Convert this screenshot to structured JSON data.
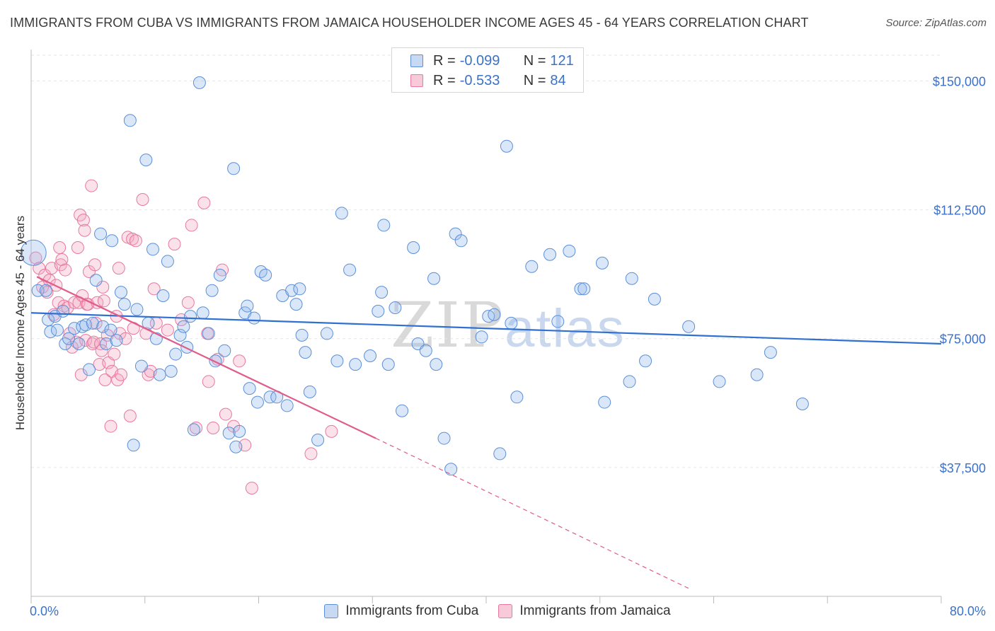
{
  "title": "IMMIGRANTS FROM CUBA VS IMMIGRANTS FROM JAMAICA HOUSEHOLDER INCOME AGES 45 - 64 YEARS CORRELATION CHART",
  "source": "Source: ZipAtlas.com",
  "watermark": {
    "zip": "ZIP",
    "atlas": "atlas"
  },
  "colors": {
    "cuba": "#5b8fd8",
    "jamaica": "#e8789f",
    "cuba_line": "#3070d0",
    "jamaica_line": "#e05c8a",
    "axis_text": "#3b72c8"
  },
  "legend": [
    {
      "r_label": "R =",
      "r_value": "-0.099",
      "n_label": "N =",
      "n_value": "121"
    },
    {
      "r_label": "R =",
      "r_value": "-0.533",
      "n_label": "N =",
      "n_value": "84"
    }
  ],
  "chart_data": {
    "type": "scatter",
    "title": "IMMIGRANTS FROM CUBA VS IMMIGRANTS FROM JAMAICA HOUSEHOLDER INCOME AGES 45 - 64 YEARS CORRELATION CHART",
    "xlabel": "",
    "ylabel": "Householder Income Ages 45 - 64 years",
    "xlim": [
      0,
      80
    ],
    "ylim": [
      0,
      157500
    ],
    "x_tick_labels": [
      "0.0%",
      "80.0%"
    ],
    "y_ticks": [
      37500,
      75000,
      112500,
      150000
    ],
    "y_tick_labels": [
      "$37,500",
      "$75,000",
      "$112,500",
      "$150,000"
    ],
    "grid": true,
    "legend_position": "top-center",
    "series": [
      {
        "name": "Immigrants from Cuba",
        "trend": {
          "x": [
            0,
            80
          ],
          "y": [
            82500,
            73500
          ]
        },
        "points": [
          [
            0.2,
            100000
          ],
          [
            0.6,
            89000
          ],
          [
            1.3,
            89000
          ],
          [
            1.5,
            80500
          ],
          [
            1.7,
            77000
          ],
          [
            2.1,
            81500
          ],
          [
            2.3,
            77500
          ],
          [
            2.8,
            83000
          ],
          [
            3.0,
            73500
          ],
          [
            3.3,
            75000
          ],
          [
            3.8,
            78000
          ],
          [
            4.2,
            73500
          ],
          [
            4.5,
            78500
          ],
          [
            4.8,
            79000
          ],
          [
            5.1,
            66000
          ],
          [
            5.4,
            79500
          ],
          [
            5.7,
            92000
          ],
          [
            6.1,
            105500
          ],
          [
            6.3,
            78500
          ],
          [
            6.6,
            73500
          ],
          [
            7.0,
            77500
          ],
          [
            7.1,
            103500
          ],
          [
            7.5,
            74500
          ],
          [
            7.9,
            88500
          ],
          [
            8.2,
            85000
          ],
          [
            8.7,
            138500
          ],
          [
            9.0,
            44000
          ],
          [
            9.3,
            83500
          ],
          [
            9.7,
            67000
          ],
          [
            10.1,
            127000
          ],
          [
            10.3,
            79500
          ],
          [
            10.7,
            101000
          ],
          [
            11.0,
            75000
          ],
          [
            11.3,
            64500
          ],
          [
            11.6,
            87500
          ],
          [
            12.0,
            97500
          ],
          [
            12.3,
            65500
          ],
          [
            12.7,
            70500
          ],
          [
            13.1,
            76000
          ],
          [
            13.4,
            78500
          ],
          [
            13.7,
            72500
          ],
          [
            14.0,
            81500
          ],
          [
            14.3,
            48500
          ],
          [
            14.8,
            149500
          ],
          [
            15.1,
            82500
          ],
          [
            15.6,
            76500
          ],
          [
            15.9,
            89000
          ],
          [
            16.2,
            68500
          ],
          [
            16.6,
            93500
          ],
          [
            17.0,
            71500
          ],
          [
            17.4,
            47500
          ],
          [
            17.8,
            124500
          ],
          [
            18.0,
            43500
          ],
          [
            18.3,
            48000
          ],
          [
            18.8,
            82500
          ],
          [
            19.0,
            84500
          ],
          [
            19.2,
            60500
          ],
          [
            19.6,
            81000
          ],
          [
            19.9,
            56500
          ],
          [
            20.2,
            94500
          ],
          [
            20.6,
            93500
          ],
          [
            21.0,
            58000
          ],
          [
            21.6,
            58000
          ],
          [
            22.1,
            87500
          ],
          [
            22.5,
            55500
          ],
          [
            22.9,
            89000
          ],
          [
            23.3,
            85000
          ],
          [
            23.6,
            89500
          ],
          [
            23.8,
            76000
          ],
          [
            24.1,
            71000
          ],
          [
            24.5,
            59500
          ],
          [
            25.2,
            45500
          ],
          [
            26.0,
            76500
          ],
          [
            26.9,
            68500
          ],
          [
            27.3,
            111500
          ],
          [
            28.0,
            95000
          ],
          [
            28.5,
            67500
          ],
          [
            29.8,
            70000
          ],
          [
            30.5,
            83000
          ],
          [
            30.8,
            88500
          ],
          [
            31.0,
            108000
          ],
          [
            31.4,
            67500
          ],
          [
            32.0,
            84000
          ],
          [
            32.6,
            54000
          ],
          [
            33.6,
            101500
          ],
          [
            34.0,
            73500
          ],
          [
            34.7,
            71500
          ],
          [
            35.4,
            92500
          ],
          [
            35.6,
            67500
          ],
          [
            36.3,
            46000
          ],
          [
            36.9,
            37000
          ],
          [
            37.3,
            105500
          ],
          [
            37.8,
            103500
          ],
          [
            39.6,
            75500
          ],
          [
            40.2,
            81500
          ],
          [
            40.7,
            82000
          ],
          [
            41.2,
            41500
          ],
          [
            41.8,
            131000
          ],
          [
            42.2,
            79500
          ],
          [
            42.7,
            58000
          ],
          [
            44.0,
            96000
          ],
          [
            45.6,
            99500
          ],
          [
            46.3,
            80000
          ],
          [
            47.3,
            100500
          ],
          [
            48.3,
            89500
          ],
          [
            48.6,
            89500
          ],
          [
            50.2,
            97000
          ],
          [
            50.4,
            56500
          ],
          [
            52.6,
            62500
          ],
          [
            52.8,
            92500
          ],
          [
            54.0,
            68500
          ],
          [
            54.8,
            86500
          ],
          [
            57.8,
            78500
          ],
          [
            60.5,
            62500
          ],
          [
            63.8,
            64500
          ],
          [
            65.0,
            71000
          ],
          [
            67.8,
            56000
          ]
        ]
      },
      {
        "name": "Immigrants from Jamaica",
        "trend": {
          "x": [
            0.5,
            30.3
          ],
          "y": [
            93000,
            46000
          ]
        },
        "trend_dashed": {
          "x": [
            30.3,
            58.0
          ],
          "y": [
            46000,
            2000
          ]
        },
        "points": [
          [
            0.4,
            98500
          ],
          [
            0.7,
            95500
          ],
          [
            1.0,
            90000
          ],
          [
            1.2,
            93500
          ],
          [
            1.4,
            88500
          ],
          [
            1.6,
            92000
          ],
          [
            1.8,
            95500
          ],
          [
            2.0,
            82000
          ],
          [
            2.2,
            90500
          ],
          [
            2.4,
            85500
          ],
          [
            2.5,
            101500
          ],
          [
            2.6,
            96500
          ],
          [
            2.7,
            98000
          ],
          [
            2.9,
            84500
          ],
          [
            3.0,
            95000
          ],
          [
            3.2,
            84000
          ],
          [
            3.4,
            76500
          ],
          [
            3.6,
            72500
          ],
          [
            3.8,
            85500
          ],
          [
            4.0,
            74000
          ],
          [
            4.1,
            101500
          ],
          [
            4.2,
            85500
          ],
          [
            4.3,
            111000
          ],
          [
            4.4,
            64500
          ],
          [
            4.5,
            87500
          ],
          [
            4.6,
            109500
          ],
          [
            4.7,
            106500
          ],
          [
            4.8,
            74500
          ],
          [
            4.9,
            85000
          ],
          [
            5.0,
            85000
          ],
          [
            5.1,
            94500
          ],
          [
            5.3,
            119500
          ],
          [
            5.4,
            73500
          ],
          [
            5.5,
            74000
          ],
          [
            5.6,
            96500
          ],
          [
            5.7,
            79500
          ],
          [
            5.8,
            85500
          ],
          [
            6.0,
            67500
          ],
          [
            6.1,
            73500
          ],
          [
            6.2,
            71500
          ],
          [
            6.3,
            90000
          ],
          [
            6.4,
            86000
          ],
          [
            6.5,
            63000
          ],
          [
            6.7,
            76000
          ],
          [
            6.8,
            68000
          ],
          [
            7.0,
            49500
          ],
          [
            7.1,
            65500
          ],
          [
            7.3,
            70500
          ],
          [
            7.5,
            81500
          ],
          [
            7.6,
            63000
          ],
          [
            7.7,
            95500
          ],
          [
            7.8,
            76500
          ],
          [
            7.9,
            64500
          ],
          [
            8.3,
            75000
          ],
          [
            8.5,
            104500
          ],
          [
            8.7,
            52500
          ],
          [
            8.9,
            104000
          ],
          [
            9.0,
            78000
          ],
          [
            9.2,
            103500
          ],
          [
            9.8,
            115500
          ],
          [
            10.1,
            76500
          ],
          [
            10.3,
            64500
          ],
          [
            10.5,
            65500
          ],
          [
            10.8,
            89500
          ],
          [
            11.0,
            79500
          ],
          [
            12.0,
            77500
          ],
          [
            12.6,
            102500
          ],
          [
            13.2,
            80500
          ],
          [
            13.8,
            85500
          ],
          [
            14.1,
            108000
          ],
          [
            14.5,
            49000
          ],
          [
            15.2,
            114500
          ],
          [
            15.5,
            76500
          ],
          [
            15.6,
            62500
          ],
          [
            16.0,
            49000
          ],
          [
            16.4,
            69000
          ],
          [
            16.8,
            95000
          ],
          [
            17.1,
            53000
          ],
          [
            17.8,
            49500
          ],
          [
            18.3,
            68500
          ],
          [
            18.8,
            44000
          ],
          [
            19.4,
            31500
          ],
          [
            24.6,
            41500
          ],
          [
            26.4,
            48000
          ]
        ]
      }
    ]
  }
}
